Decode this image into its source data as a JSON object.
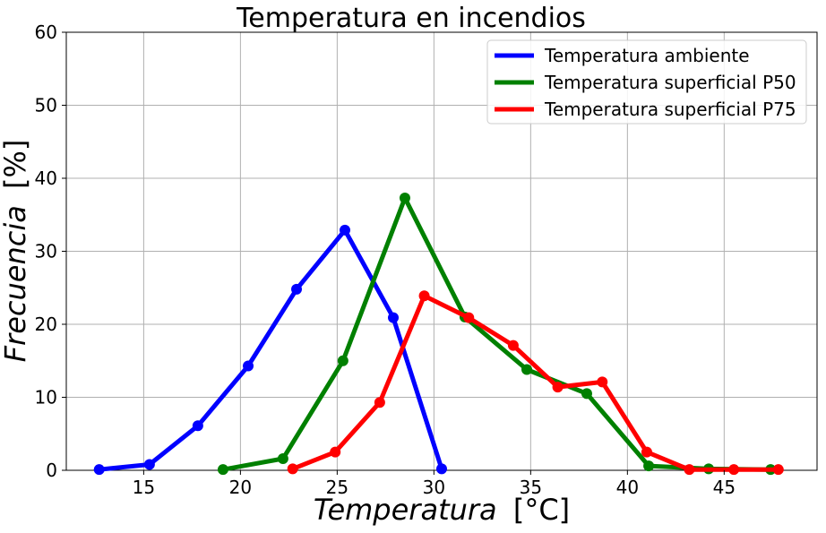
{
  "chart_data": {
    "type": "line",
    "title": "Temperatura en incendios",
    "xlabel": "Temperatura [°C]",
    "xlabel_main": "Temperatura",
    "xlabel_unit": "[°C]",
    "ylabel": "Frecuencia [%]",
    "ylabel_main": "Frecuencia",
    "ylabel_unit": "[%]",
    "xlim": [
      11,
      49.8
    ],
    "ylim": [
      0,
      60
    ],
    "xticks": [
      15,
      20,
      25,
      30,
      35,
      40,
      45
    ],
    "yticks": [
      0,
      10,
      20,
      30,
      40,
      50,
      60
    ],
    "grid": true,
    "legend_position": "top-right",
    "series": [
      {
        "name": "Temperatura ambiente",
        "color": "#0000ff",
        "x": [
          12.7,
          15.3,
          17.8,
          20.4,
          22.9,
          25.4,
          27.9,
          30.4
        ],
        "y": [
          0.1,
          0.8,
          6.1,
          14.3,
          24.8,
          32.9,
          20.9,
          0.2
        ]
      },
      {
        "name": "Temperatura superficial P50",
        "color": "#008000",
        "x": [
          19.1,
          22.2,
          25.3,
          28.5,
          31.6,
          34.8,
          37.9,
          41.1,
          44.2,
          47.4
        ],
        "y": [
          0.1,
          1.6,
          15.0,
          37.3,
          21.0,
          13.8,
          10.5,
          0.6,
          0.2,
          0.1
        ]
      },
      {
        "name": "Temperatura superficial P75",
        "color": "#ff0000",
        "x": [
          22.7,
          24.9,
          27.2,
          29.5,
          31.8,
          34.1,
          36.4,
          38.7,
          41.0,
          43.2,
          45.5,
          47.8
        ],
        "y": [
          0.2,
          2.5,
          9.3,
          23.9,
          20.9,
          17.1,
          11.4,
          12.1,
          2.5,
          0.1,
          0.1,
          0.1
        ]
      }
    ]
  }
}
